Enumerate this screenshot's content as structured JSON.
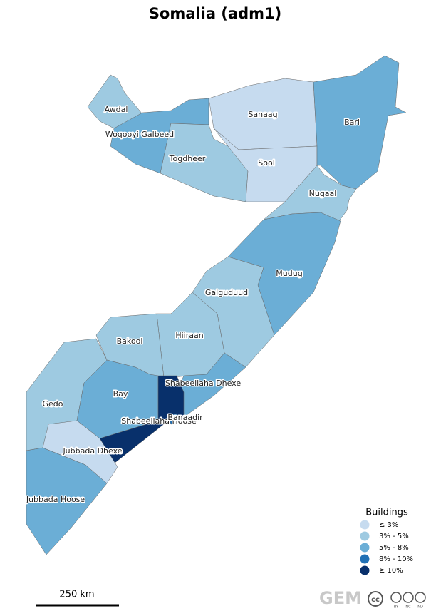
{
  "title": "Somalia (adm1)",
  "regions": [
    {
      "name": "Awdal",
      "color": "#9ecae1"
    },
    {
      "name": "Woqooyi Galbeed",
      "color": "#6baed6"
    },
    {
      "name": "Togdheer",
      "color": "#9ecae1"
    },
    {
      "name": "Sanaag",
      "color": "#c6dbef"
    },
    {
      "name": "Sool",
      "color": "#c6dbef"
    },
    {
      "name": "Bari",
      "color": "#6baed6"
    },
    {
      "name": "Nugaal",
      "color": "#9ecae1"
    },
    {
      "name": "Mudug",
      "color": "#6baed6"
    },
    {
      "name": "Galguduud",
      "color": "#9ecae1"
    },
    {
      "name": "Hiiraan",
      "color": "#9ecae1"
    },
    {
      "name": "Bakool",
      "color": "#9ecae1"
    },
    {
      "name": "Gedo",
      "color": "#9ecae1"
    },
    {
      "name": "Bay",
      "color": "#6baed6"
    },
    {
      "name": "Shabeellaha Dhexe",
      "color": "#6baed6"
    },
    {
      "name": "Shabeellaha Hoose",
      "color": "#08306b"
    },
    {
      "name": "Banaadir",
      "color": "#2171b5"
    },
    {
      "name": "Jubbada Dhexe",
      "color": "#c6dbef"
    },
    {
      "name": "Jubbada Hoose",
      "color": "#6baed6"
    }
  ],
  "legend": {
    "title": "Buildings",
    "entries": [
      {
        "label": "≤ 3%",
        "color": "#c6dbef"
      },
      {
        "label": "3% - 5%",
        "color": "#9ecae1"
      },
      {
        "label": "5% - 8%",
        "color": "#6baed6"
      },
      {
        "label": "8% - 10%",
        "color": "#2171b5"
      },
      {
        "label": "≥ 10%",
        "color": "#08306b"
      }
    ]
  },
  "scale_bar": "250 km",
  "logo": "GEM",
  "license": [
    "BY",
    "NC",
    "ND"
  ]
}
